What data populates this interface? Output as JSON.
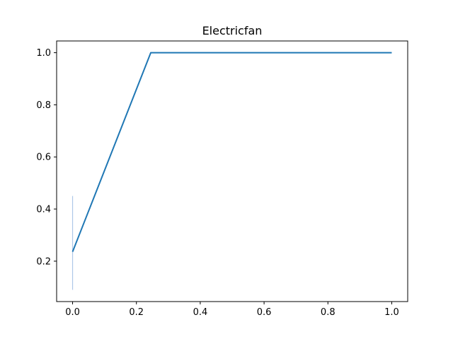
{
  "chart_data": {
    "type": "line",
    "title": "Electricfan",
    "xlabel": "",
    "ylabel": "",
    "xlim": [
      -0.05,
      1.05
    ],
    "ylim": [
      0.045,
      1.045
    ],
    "x_ticks": [
      0.0,
      0.2,
      0.4,
      0.6,
      0.8,
      1.0
    ],
    "y_ticks": [
      0.2,
      0.4,
      0.6,
      0.8,
      1.0
    ],
    "x_tick_labels": [
      "0.0",
      "0.2",
      "0.4",
      "0.6",
      "0.8",
      "1.0"
    ],
    "y_tick_labels": [
      "0.2",
      "0.4",
      "0.6",
      "0.8",
      "1.0"
    ],
    "grid": false,
    "legend": "none",
    "series": [
      {
        "x": [
          0.0,
          0.245,
          1.0
        ],
        "y": [
          0.236,
          1.0,
          1.0
        ],
        "color": "#1f77b4"
      }
    ],
    "error_band": {
      "x": 0.0,
      "y_low": 0.09,
      "y_high": 0.45,
      "color": "#aec7e8"
    }
  }
}
